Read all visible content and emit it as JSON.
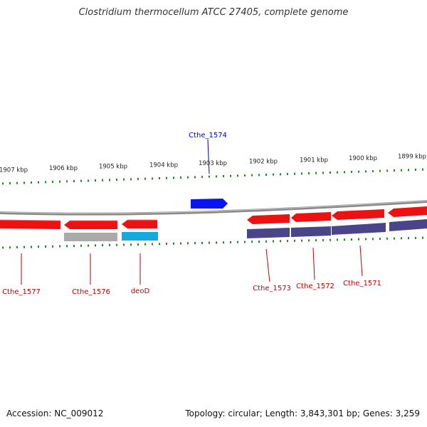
{
  "title": "Clostridium thermocellum ATCC 27405, complete genome",
  "footer": {
    "accession": "Accession: NC_009012",
    "topology": "Topology: circular; Length: 3,843,301 bp; Genes: 3,259"
  },
  "colors": {
    "backbone": "#8a8a8a",
    "gene_red": "#ee1111",
    "gene_blue": "#0a14ee",
    "gene_gray": "#aaaaaa",
    "gene_cyan": "#14aadd",
    "gene_purple": "#4a4488",
    "tick": "#228822",
    "label_red": "#bb0000",
    "label_blue": "#0000bb"
  },
  "axis": {
    "ticks": [
      {
        "label": "1907 kbp"
      },
      {
        "label": "1906 kbp"
      },
      {
        "label": "1905 kbp"
      },
      {
        "label": "1904 kbp"
      },
      {
        "label": "1903 kbp"
      },
      {
        "label": "1902 kbp"
      },
      {
        "label": "1901 kbp"
      },
      {
        "label": "1900 kbp"
      },
      {
        "label": "1899 kbp"
      }
    ]
  },
  "genes": [
    {
      "name": "Cthe_1577",
      "type": "red"
    },
    {
      "name": "Cthe_1576",
      "type": "red"
    },
    {
      "name": "deoD",
      "type": "red"
    },
    {
      "name": "Cthe_1574",
      "type": "blue"
    },
    {
      "name": "Cthe_1573",
      "type": "red"
    },
    {
      "name": "Cthe_1572",
      "type": "red"
    },
    {
      "name": "Cthe_1571",
      "type": "red"
    }
  ]
}
